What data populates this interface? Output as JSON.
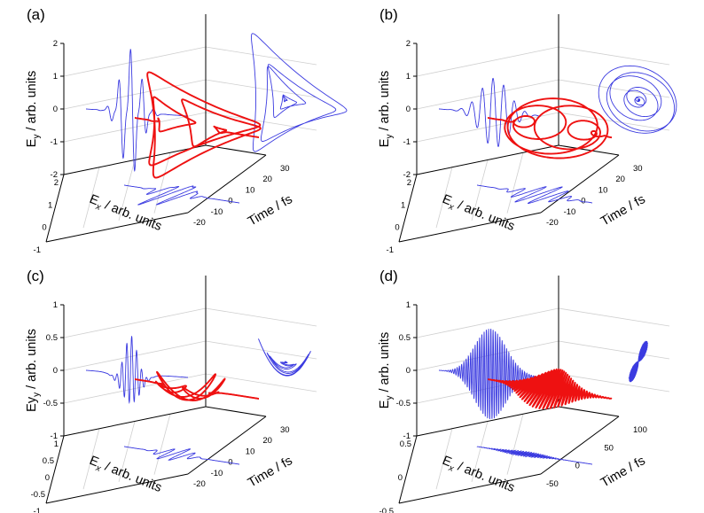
{
  "chart_data": [
    {
      "type": "line",
      "panel_label": "(a)",
      "ylabel": "E_y / arb. units",
      "xlabel": "E_x / arb. units",
      "zlabel": "Time / fs",
      "ylim": [
        -2,
        2
      ],
      "xlim": [
        -1,
        2
      ],
      "tlim": [
        -20,
        30
      ],
      "yticks": [
        "2",
        "1",
        "0",
        "-1",
        "-2"
      ],
      "xticks": [
        "2",
        "1",
        "0",
        "-1"
      ],
      "tticks": [
        "-20",
        "-10",
        "0",
        "10",
        "20",
        "30"
      ],
      "colors": {
        "projection": "#3b3be0",
        "trajectory": "#ee1111"
      },
      "shape": "three-lobed clover"
    },
    {
      "type": "line",
      "panel_label": "(b)",
      "ylabel": "E_y / arb. units",
      "xlabel": "E_x / arb. units",
      "zlabel": "Time / fs",
      "ylim": [
        -2,
        2
      ],
      "xlim": [
        -1,
        2
      ],
      "tlim": [
        -20,
        30
      ],
      "yticks": [
        "2",
        "1",
        "0",
        "-1",
        "-2"
      ],
      "xticks": [
        "2",
        "1",
        "0",
        "-1"
      ],
      "tticks": [
        "-20",
        "-10",
        "0",
        "10",
        "20",
        "30"
      ],
      "colors": {
        "projection": "#3b3be0",
        "trajectory": "#ee1111"
      },
      "shape": "nested spiral ellipses"
    },
    {
      "type": "line",
      "panel_label": "(c)",
      "ylabel": "Ey_y / arb. units",
      "xlabel": "E_x / arb. units",
      "zlabel": "Time / fs",
      "ylim": [
        -1,
        1
      ],
      "xlim": [
        -1,
        1
      ],
      "tlim": [
        -20,
        30
      ],
      "yticks": [
        "1",
        "0.5",
        "0",
        "-0.5",
        "-1"
      ],
      "xticks": [
        "1",
        "0.5",
        "0",
        "-0.5",
        "-1"
      ],
      "tticks": [
        "-20",
        "-10",
        "0",
        "10",
        "20",
        "30"
      ],
      "colors": {
        "projection": "#3b3be0",
        "trajectory": "#ee1111"
      },
      "shape": "parabola"
    },
    {
      "type": "line",
      "panel_label": "(d)",
      "ylabel": "E_y / arb. units",
      "xlabel": "E_x / arb. units",
      "zlabel": "Time / fs",
      "ylim": [
        -1,
        1
      ],
      "xlim": [
        -0.5,
        0.5
      ],
      "tlim": [
        -50,
        100
      ],
      "yticks": [
        "1",
        "0.5",
        "0",
        "-0.5",
        "-1"
      ],
      "xticks": [
        "0.5",
        "0",
        "-0.5"
      ],
      "tticks": [
        "-50",
        "0",
        "50",
        "100"
      ],
      "colors": {
        "projection": "#3b3be0",
        "trajectory": "#ee1111"
      },
      "shape": "rotating lines"
    }
  ]
}
